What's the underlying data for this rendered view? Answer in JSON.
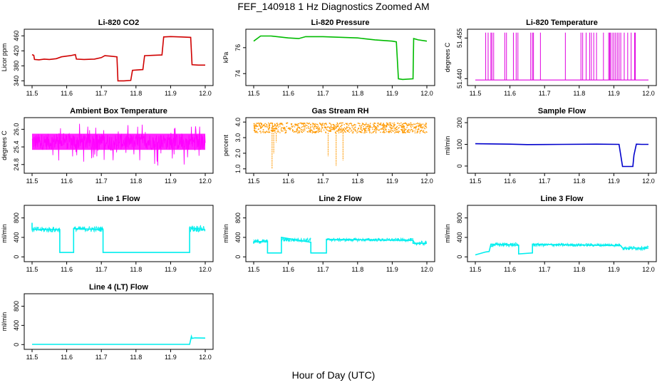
{
  "figure": {
    "title": "FEF_140918  1 Hz Diagnostics Zoomed AM",
    "xlabel": "Hour of Day (UTC)"
  },
  "chart_data": [
    {
      "type": "line",
      "title": "Li-820 CO2",
      "ylabel": "Licor ppm",
      "color": "#d00000",
      "x_ticks": [
        "11.5",
        "11.6",
        "11.7",
        "11.8",
        "11.9",
        "12.0"
      ],
      "xlim": [
        11.5,
        12.0
      ],
      "y_ticks": [
        340,
        380,
        420,
        460
      ],
      "ylim": [
        335,
        470
      ],
      "series": [
        {
          "x": [
            11.5,
            11.505,
            11.507,
            11.52,
            11.535,
            11.55,
            11.57,
            11.585,
            11.6,
            11.61,
            11.625,
            11.628,
            11.65,
            11.68,
            11.7,
            11.71,
            11.725,
            11.745,
            11.748,
            11.765,
            11.785,
            11.79,
            11.805,
            11.82,
            11.825,
            11.85,
            11.875,
            11.88,
            11.9,
            11.93,
            11.958,
            11.962,
            11.98,
            12.0
          ],
          "y": [
            410,
            408,
            397,
            396,
            398,
            397,
            399,
            404,
            406,
            407,
            410,
            398,
            397,
            398,
            402,
            407,
            406,
            404,
            340,
            340,
            341,
            368,
            369,
            370,
            407,
            408,
            409,
            457,
            458,
            457,
            456,
            383,
            382,
            382
          ]
        }
      ]
    },
    {
      "type": "line",
      "title": "Li-820 Pressure",
      "ylabel": "kPa",
      "color": "#00bb00",
      "x_ticks": [
        "11.5",
        "11.6",
        "11.7",
        "11.8",
        "11.9",
        "12.0"
      ],
      "xlim": [
        11.5,
        12.0
      ],
      "y_ticks": [
        74,
        76
      ],
      "ylim": [
        73.3,
        77.2
      ],
      "series": [
        {
          "x": [
            11.5,
            11.52,
            11.55,
            11.6,
            11.63,
            11.65,
            11.7,
            11.75,
            11.8,
            11.85,
            11.9,
            11.912,
            11.918,
            11.93,
            11.96,
            11.962,
            11.975,
            12.0
          ],
          "y": [
            76.5,
            76.9,
            76.9,
            76.75,
            76.7,
            76.85,
            76.85,
            76.8,
            76.75,
            76.6,
            76.5,
            76.45,
            73.6,
            73.55,
            73.6,
            76.7,
            76.6,
            76.5
          ]
        }
      ]
    },
    {
      "type": "line",
      "title": "Li-820 Temperature",
      "ylabel": "degrees C",
      "color": "#e000e0",
      "x_ticks": [
        "11.5",
        "11.6",
        "11.7",
        "11.8",
        "11.9",
        "12.0"
      ],
      "xlim": [
        11.5,
        12.0
      ],
      "y_ticks": [
        "51.440",
        "51.455"
      ],
      "y_tick_values": [
        51.44,
        51.455
      ],
      "ylim": [
        51.4385,
        51.4572
      ],
      "baseline": 51.4395,
      "spike_top": 51.457,
      "spike_x": [
        11.53,
        11.537,
        11.545,
        11.548,
        11.553,
        11.585,
        11.59,
        11.61,
        11.618,
        11.623,
        11.66,
        11.665,
        11.668,
        11.688,
        11.76,
        11.805,
        11.81,
        11.82,
        11.83,
        11.835,
        11.842,
        11.85,
        11.87,
        11.885,
        11.888,
        11.89,
        11.895,
        11.9,
        11.905,
        11.91,
        11.915,
        11.92,
        11.93,
        11.94,
        11.95,
        11.96,
        11.962
      ]
    },
    {
      "type": "line",
      "title": "Ambient Box Temperature",
      "ylabel": "degrees C",
      "color": "#ff00ff",
      "x_ticks": [
        "11.5",
        "11.6",
        "11.7",
        "11.8",
        "11.9",
        "12.0"
      ],
      "xlim": [
        11.5,
        12.0
      ],
      "y_ticks": [
        "24.8",
        "25.4",
        "26.0"
      ],
      "y_tick_values": [
        24.8,
        25.4,
        26.0
      ],
      "ylim": [
        24.6,
        26.3
      ],
      "band": [
        25.3,
        25.85
      ],
      "noise_range": [
        24.75,
        26.2
      ]
    },
    {
      "type": "scatter",
      "title": "Gas Stream RH",
      "ylabel": "percent",
      "color": "#ff9900",
      "x_ticks": [
        "11.5",
        "11.6",
        "11.7",
        "11.8",
        "11.9",
        "12.0"
      ],
      "xlim": [
        11.5,
        12.0
      ],
      "y_ticks": [
        "1.0",
        "2.0",
        "3.0",
        "4.0"
      ],
      "y_tick_values": [
        1.0,
        2.0,
        3.0,
        4.0
      ],
      "ylim": [
        0.9,
        4.1
      ],
      "band": [
        3.3,
        3.95
      ],
      "dips": [
        {
          "x": 11.553,
          "y": 1.0
        },
        {
          "x": 11.558,
          "y": 2.0
        },
        {
          "x": 11.565,
          "y": 2.7
        },
        {
          "x": 11.715,
          "y": 1.8
        },
        {
          "x": 11.738,
          "y": 1.2
        },
        {
          "x": 11.758,
          "y": 1.55
        }
      ]
    },
    {
      "type": "line",
      "title": "Sample Flow",
      "ylabel": "ml/min",
      "color": "#0000cc",
      "x_ticks": [
        "11.5",
        "11.6",
        "11.7",
        "11.8",
        "11.9",
        "12.0"
      ],
      "xlim": [
        11.5,
        12.0
      ],
      "y_ticks": [
        0,
        100,
        200
      ],
      "ylim": [
        -20,
        210
      ],
      "series": [
        {
          "x": [
            11.5,
            11.6,
            11.65,
            11.75,
            11.85,
            11.915,
            11.92,
            11.925,
            11.955,
            11.958,
            11.965,
            11.98,
            12.0
          ],
          "y": [
            103,
            101,
            99,
            100,
            101,
            100,
            50,
            -2,
            -2,
            50,
            101,
            100,
            100
          ]
        }
      ]
    },
    {
      "type": "line",
      "title": "Line 1 Flow",
      "ylabel": "ml/min",
      "color": "#00eeee",
      "x_ticks": [
        "11.5",
        "11.6",
        "11.7",
        "11.8",
        "11.9",
        "12.0"
      ],
      "xlim": [
        11.5,
        12.0
      ],
      "y_ticks": [
        0,
        400,
        800
      ],
      "ylim": [
        -40,
        1000
      ],
      "series": [
        {
          "x": [
            11.5,
            11.5,
            11.58,
            11.58,
            11.62,
            11.62,
            11.705,
            11.705,
            11.955,
            11.955,
            12.0
          ],
          "y": [
            700,
            560,
            560,
            90,
            90,
            580,
            560,
            90,
            90,
            600,
            560
          ]
        }
      ],
      "noise_segments": [
        [
          11.5,
          11.58,
          120
        ],
        [
          11.62,
          11.705,
          120
        ],
        [
          11.955,
          12.0,
          140
        ]
      ]
    },
    {
      "type": "line",
      "title": "Line 2 Flow",
      "ylabel": "ml/min",
      "color": "#00eeee",
      "x_ticks": [
        "11.5",
        "11.6",
        "11.7",
        "11.8",
        "11.9",
        "12.0"
      ],
      "xlim": [
        11.5,
        12.0
      ],
      "y_ticks": [
        0,
        400,
        800
      ],
      "ylim": [
        -40,
        1000
      ],
      "series": [
        {
          "x": [
            11.5,
            11.5,
            11.54,
            11.54,
            11.58,
            11.58,
            11.665,
            11.665,
            11.71,
            11.71,
            11.96,
            11.96,
            12.0
          ],
          "y": [
            270,
            310,
            320,
            80,
            80,
            400,
            300,
            80,
            80,
            360,
            340,
            280,
            280
          ]
        }
      ],
      "noise_segments": [
        [
          11.5,
          11.54,
          90
        ],
        [
          11.58,
          11.665,
          90
        ],
        [
          11.71,
          11.96,
          70
        ],
        [
          11.96,
          12.0,
          90
        ]
      ]
    },
    {
      "type": "line",
      "title": "Line 3 Flow",
      "ylabel": "ml/min",
      "color": "#00eeee",
      "x_ticks": [
        "11.5",
        "11.6",
        "11.7",
        "11.8",
        "11.9",
        "12.0"
      ],
      "xlim": [
        11.5,
        12.0
      ],
      "y_ticks": [
        0,
        400,
        800
      ],
      "ylim": [
        -40,
        1000
      ],
      "series": [
        {
          "x": [
            11.5,
            11.53,
            11.54,
            11.545,
            11.625,
            11.625,
            11.665,
            11.665,
            11.92,
            11.925,
            12.0
          ],
          "y": [
            40,
            100,
            110,
            260,
            240,
            60,
            80,
            260,
            230,
            180,
            180
          ]
        }
      ],
      "noise_segments": [
        [
          11.545,
          11.625,
          90
        ],
        [
          11.665,
          11.92,
          70
        ],
        [
          11.925,
          12.0,
          90
        ]
      ]
    },
    {
      "type": "line",
      "title": "Line 4 (LT) Flow",
      "ylabel": "ml/min",
      "color": "#00eeee",
      "x_ticks": [
        "11.5",
        "11.6",
        "11.7",
        "11.8",
        "11.9",
        "12.0"
      ],
      "xlim": [
        11.5,
        12.0
      ],
      "y_ticks": [
        0,
        400,
        800
      ],
      "ylim": [
        -40,
        1000
      ],
      "series": [
        {
          "x": [
            11.5,
            11.955,
            11.96,
            11.962,
            11.97,
            12.0
          ],
          "y": [
            5,
            5,
            170,
            130,
            140,
            135
          ]
        }
      ]
    }
  ]
}
